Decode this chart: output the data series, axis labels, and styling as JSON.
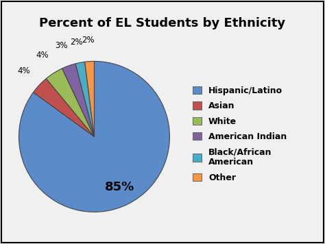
{
  "title": "Percent of EL Students by Ethnicity",
  "labels": [
    "Hispanic/Latino",
    "Asian",
    "White",
    "American Indian",
    "Black/African American",
    "Other"
  ],
  "values": [
    85,
    4,
    4,
    3,
    2,
    2
  ],
  "colors": [
    "#5B8BC9",
    "#C0504D",
    "#9BBB59",
    "#8064A2",
    "#4BACC6",
    "#F79646"
  ],
  "legend_labels": [
    "Hispanic/Latino",
    "Asian",
    "White",
    "American Indian",
    "Black/African\nAmerican",
    "Other"
  ],
  "title_fontsize": 13,
  "label_fontsize": 9,
  "legend_fontsize": 9,
  "background_color": "#f0f0f0",
  "border_color": "#000000"
}
